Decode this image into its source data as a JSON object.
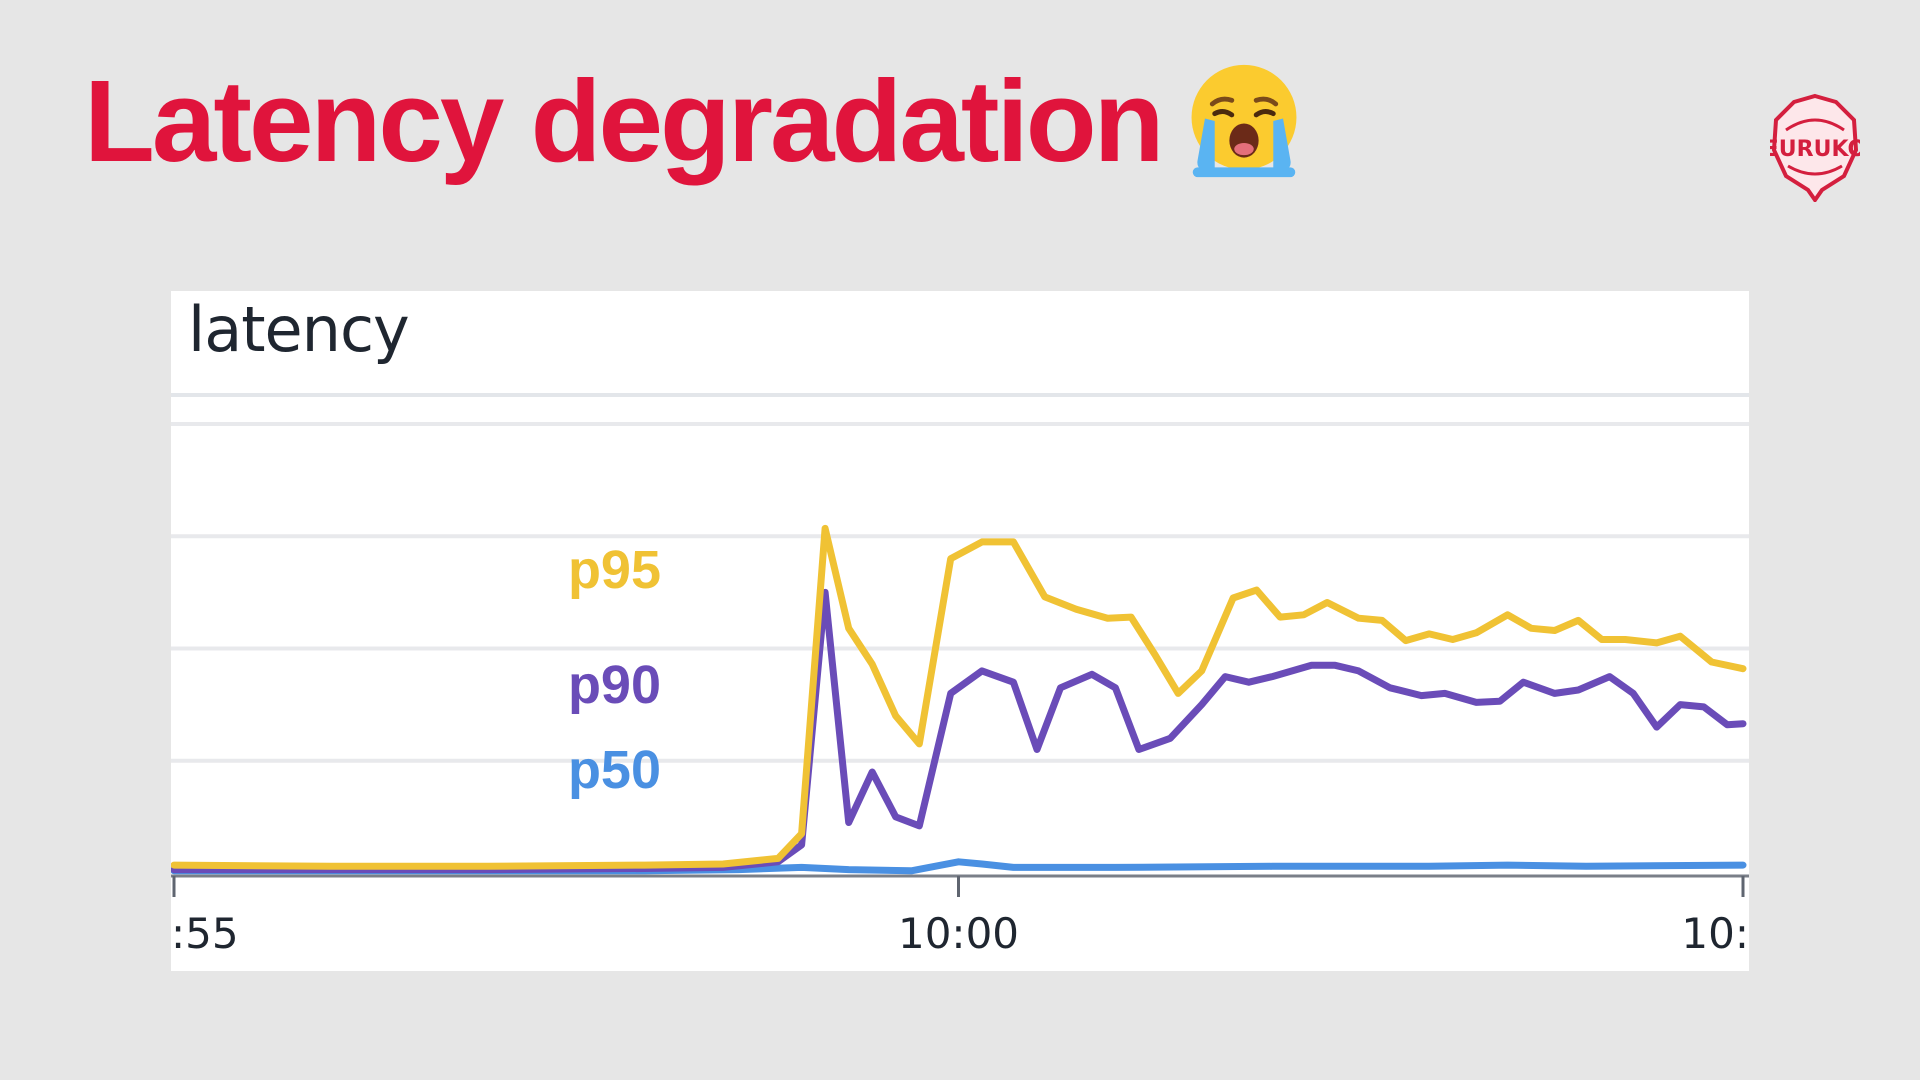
{
  "slide": {
    "title": "Latency degradation",
    "emoji_icon": "loudly-crying-face-icon",
    "logo_icon": "euruko-logo-icon",
    "logo_text": "EURUKO",
    "title_color": "#e0143c",
    "background": "#e6e6e6"
  },
  "chart_data": {
    "type": "line",
    "title": "latency",
    "xlabel": "",
    "ylabel": "",
    "x_ticks": [
      {
        "x": 0,
        "label": ":55"
      },
      {
        "x": 5,
        "label": "10:00"
      },
      {
        "x": 10,
        "label": "10:"
      }
    ],
    "xlim": [
      0,
      10
    ],
    "ylim": [
      0,
      4
    ],
    "grid": true,
    "legend": "inline-left",
    "series": [
      {
        "name": "p95",
        "color": "#f0c234",
        "points": [
          [
            0,
            0.07
          ],
          [
            1,
            0.06
          ],
          [
            2,
            0.06
          ],
          [
            3,
            0.07
          ],
          [
            3.5,
            0.08
          ],
          [
            3.85,
            0.13
          ],
          [
            4.0,
            0.35
          ],
          [
            4.15,
            3.07
          ],
          [
            4.3,
            2.18
          ],
          [
            4.45,
            1.86
          ],
          [
            4.6,
            1.4
          ],
          [
            4.75,
            1.15
          ],
          [
            4.95,
            2.8
          ],
          [
            5.15,
            2.95
          ],
          [
            5.35,
            2.95
          ],
          [
            5.55,
            2.46
          ],
          [
            5.75,
            2.35
          ],
          [
            5.95,
            2.27
          ],
          [
            6.1,
            2.28
          ],
          [
            6.25,
            1.95
          ],
          [
            6.4,
            1.6
          ],
          [
            6.55,
            1.8
          ],
          [
            6.75,
            2.45
          ],
          [
            6.9,
            2.52
          ],
          [
            7.05,
            2.28
          ],
          [
            7.2,
            2.3
          ],
          [
            7.35,
            2.41
          ],
          [
            7.55,
            2.27
          ],
          [
            7.7,
            2.25
          ],
          [
            7.85,
            2.07
          ],
          [
            8.0,
            2.13
          ],
          [
            8.15,
            2.08
          ],
          [
            8.3,
            2.14
          ],
          [
            8.5,
            2.3
          ],
          [
            8.65,
            2.18
          ],
          [
            8.8,
            2.16
          ],
          [
            8.95,
            2.25
          ],
          [
            9.1,
            2.08
          ],
          [
            9.25,
            2.08
          ],
          [
            9.45,
            2.05
          ],
          [
            9.6,
            2.11
          ],
          [
            9.8,
            1.88
          ],
          [
            10,
            1.82
          ]
        ]
      },
      {
        "name": "p90",
        "color": "#6a4cb8",
        "points": [
          [
            0,
            0.03
          ],
          [
            1,
            0.03
          ],
          [
            2,
            0.03
          ],
          [
            3,
            0.04
          ],
          [
            3.5,
            0.05
          ],
          [
            3.85,
            0.1
          ],
          [
            4.0,
            0.25
          ],
          [
            4.15,
            2.5
          ],
          [
            4.3,
            0.45
          ],
          [
            4.45,
            0.9
          ],
          [
            4.6,
            0.5
          ],
          [
            4.75,
            0.42
          ],
          [
            4.95,
            1.6
          ],
          [
            5.15,
            1.8
          ],
          [
            5.35,
            1.7
          ],
          [
            5.5,
            1.1
          ],
          [
            5.65,
            1.65
          ],
          [
            5.85,
            1.77
          ],
          [
            6.0,
            1.65
          ],
          [
            6.15,
            1.1
          ],
          [
            6.35,
            1.2
          ],
          [
            6.55,
            1.5
          ],
          [
            6.7,
            1.75
          ],
          [
            6.85,
            1.7
          ],
          [
            7.0,
            1.75
          ],
          [
            7.25,
            1.85
          ],
          [
            7.4,
            1.85
          ],
          [
            7.55,
            1.8
          ],
          [
            7.75,
            1.65
          ],
          [
            7.95,
            1.58
          ],
          [
            8.1,
            1.6
          ],
          [
            8.3,
            1.52
          ],
          [
            8.45,
            1.53
          ],
          [
            8.6,
            1.7
          ],
          [
            8.8,
            1.6
          ],
          [
            8.95,
            1.63
          ],
          [
            9.15,
            1.75
          ],
          [
            9.3,
            1.6
          ],
          [
            9.45,
            1.3
          ],
          [
            9.6,
            1.5
          ],
          [
            9.75,
            1.48
          ],
          [
            9.9,
            1.32
          ],
          [
            10,
            1.33
          ]
        ]
      },
      {
        "name": "p50",
        "color": "#4a90e2",
        "points": [
          [
            0,
            0.02
          ],
          [
            1,
            0.02
          ],
          [
            2,
            0.02
          ],
          [
            3,
            0.02
          ],
          [
            3.6,
            0.03
          ],
          [
            4.0,
            0.05
          ],
          [
            4.3,
            0.03
          ],
          [
            4.7,
            0.02
          ],
          [
            5.0,
            0.1
          ],
          [
            5.15,
            0.08
          ],
          [
            5.35,
            0.05
          ],
          [
            6.0,
            0.05
          ],
          [
            7.0,
            0.06
          ],
          [
            8.0,
            0.06
          ],
          [
            8.5,
            0.07
          ],
          [
            9.0,
            0.06
          ],
          [
            10,
            0.07
          ]
        ]
      }
    ]
  }
}
